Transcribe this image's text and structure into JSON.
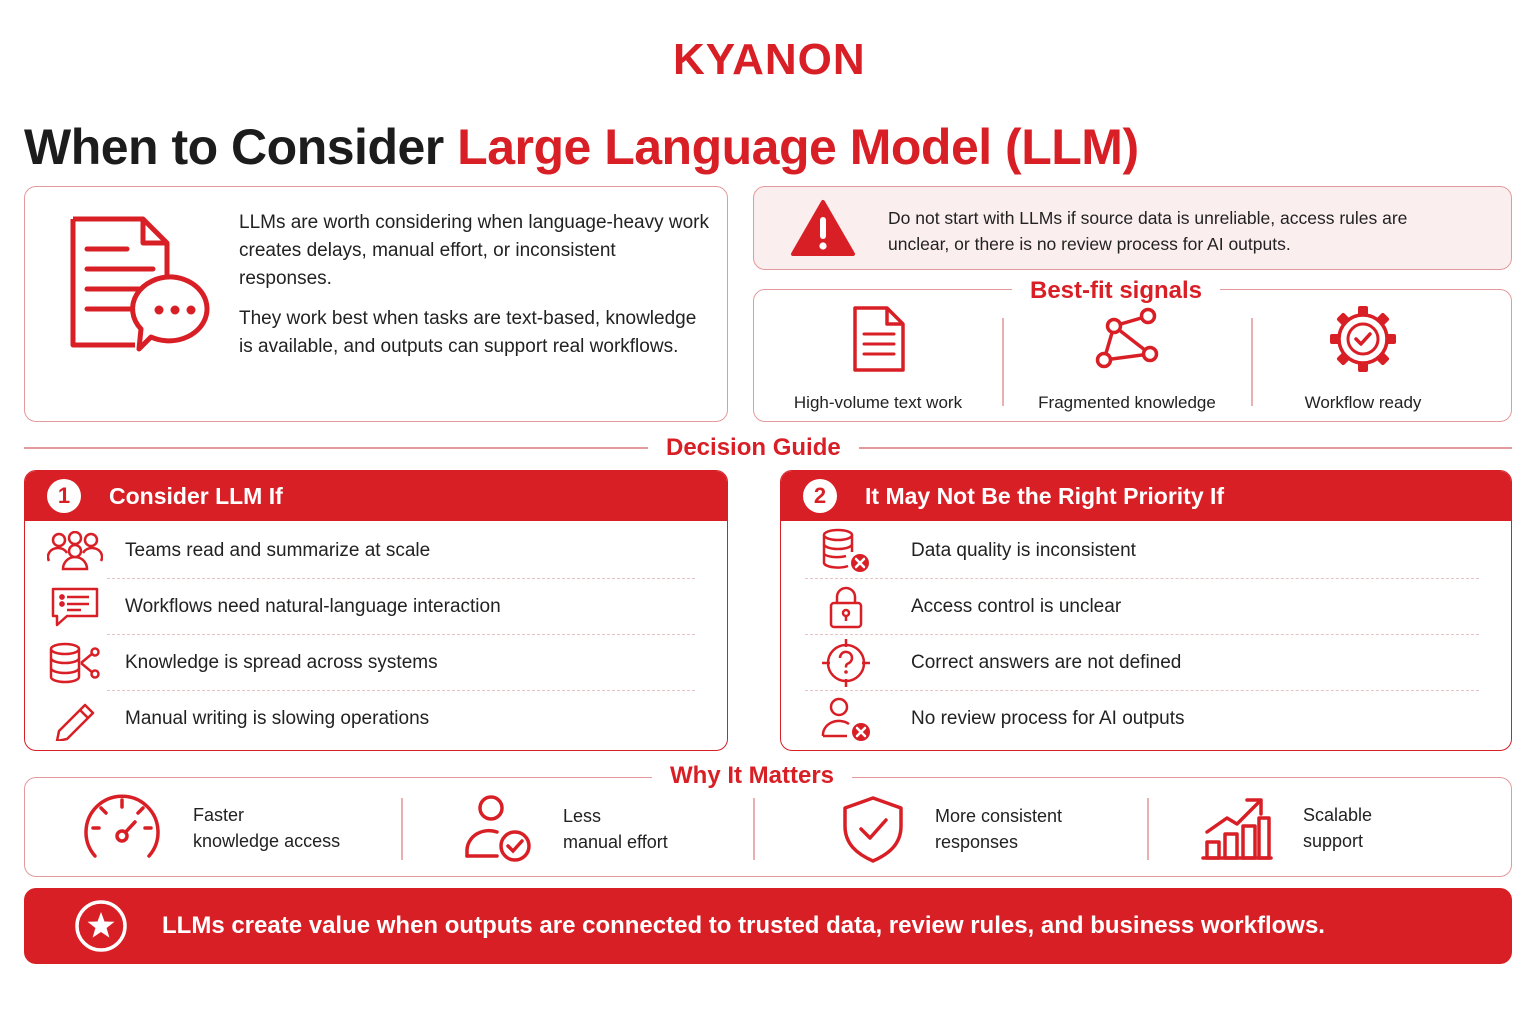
{
  "brand": {
    "logo": "KYANON"
  },
  "title": {
    "prefix": "When to Consider ",
    "highlight": "Large Language Model (LLM)"
  },
  "intro": {
    "icon": "document-chat-icon",
    "paragraph1": "LLMs are worth considering when language-heavy work creates delays, manual effort, or inconsistent responses.",
    "paragraph2": "They work best when tasks are text-based, knowledge is available, and outputs can support real workflows."
  },
  "warning": {
    "icon": "warning-triangle-icon",
    "text": "Do not start with LLMs if source data is unreliable, access rules are unclear, or there is no review process for AI outputs."
  },
  "best_fit": {
    "title": "Best-fit signals",
    "items": [
      {
        "icon": "document-icon",
        "label": "High-volume text work"
      },
      {
        "icon": "network-nodes-icon",
        "label": "Fragmented knowledge"
      },
      {
        "icon": "gear-check-icon",
        "label": "Workflow ready"
      }
    ]
  },
  "decision_guide": {
    "title": "Decision Guide",
    "consider": {
      "number": "1",
      "title": "Consider LLM If",
      "items": [
        {
          "icon": "team-icon",
          "text": "Teams read and summarize at scale"
        },
        {
          "icon": "chat-list-icon",
          "text": "Workflows need natural-language interaction"
        },
        {
          "icon": "database-share-icon",
          "text": "Knowledge is spread across systems"
        },
        {
          "icon": "pencil-icon",
          "text": "Manual writing is slowing operations"
        }
      ]
    },
    "not_priority": {
      "number": "2",
      "title": "It May Not Be the Right Priority If",
      "items": [
        {
          "icon": "database-error-icon",
          "text": "Data quality is inconsistent"
        },
        {
          "icon": "lock-icon",
          "text": "Access control is unclear"
        },
        {
          "icon": "question-target-icon",
          "text": "Correct answers are not defined"
        },
        {
          "icon": "user-error-icon",
          "text": "No review process for AI outputs"
        }
      ]
    }
  },
  "why": {
    "title": "Why It Matters",
    "items": [
      {
        "icon": "speedometer-icon",
        "line1": "Faster",
        "line2": "knowledge access"
      },
      {
        "icon": "user-check-icon",
        "line1": "Less",
        "line2": "manual effort"
      },
      {
        "icon": "shield-check-icon",
        "line1": "More consistent",
        "line2": "responses"
      },
      {
        "icon": "growth-chart-icon",
        "line1": "Scalable",
        "line2": "support"
      }
    ]
  },
  "banner": {
    "icon": "star-circle-icon",
    "text": "LLMs create value when outputs are connected to trusted data, review rules, and business workflows."
  },
  "colors": {
    "accent": "#d91f26",
    "border": "#e49a9c",
    "warning_bg": "#fbeeee"
  }
}
